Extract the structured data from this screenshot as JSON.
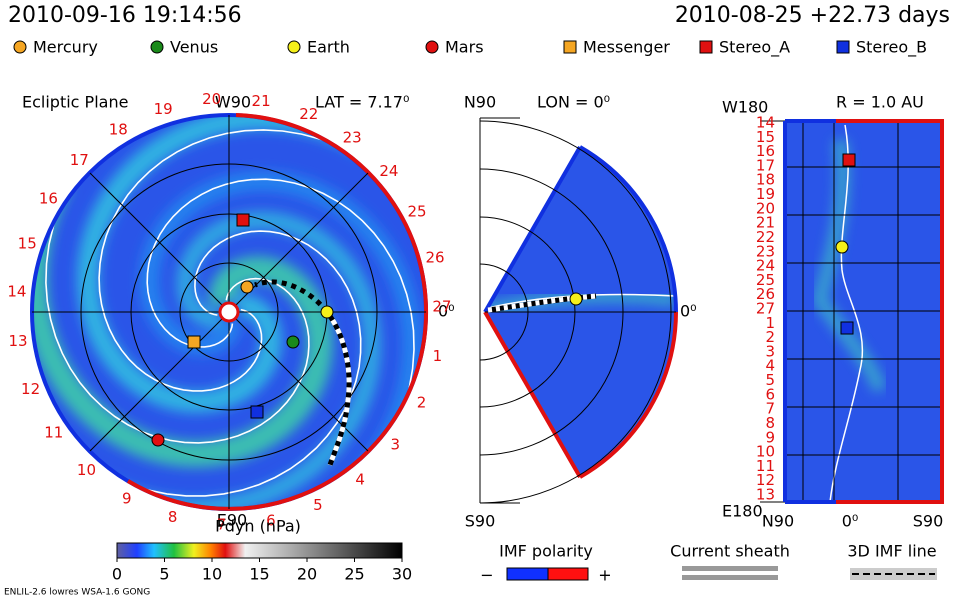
{
  "header": {
    "timestamp": "2010-09-16 19:14:56",
    "run": "2010-08-25 +22.73 days"
  },
  "legend": {
    "items": [
      {
        "label": "Mercury",
        "shape": "circle",
        "color": "#f5a623"
      },
      {
        "label": "Venus",
        "shape": "circle",
        "color": "#1a8a1a"
      },
      {
        "label": "Earth",
        "shape": "circle",
        "color": "#f5f01a"
      },
      {
        "label": "Mars",
        "shape": "circle",
        "color": "#e01010"
      },
      {
        "label": "Messenger",
        "shape": "square",
        "color": "#f5a623"
      },
      {
        "label": "Stereo_A",
        "shape": "square",
        "color": "#e01010"
      },
      {
        "label": "Stereo_B",
        "shape": "square",
        "color": "#1030e0"
      }
    ]
  },
  "ecliptic": {
    "title": "Ecliptic Plane",
    "top": "W90",
    "bottom": "E90",
    "right": "0⁰",
    "lat": "LAT = 7.17⁰",
    "day_labels": [
      "19",
      "20",
      "21",
      "22",
      "23",
      "24",
      "25",
      "26",
      "27",
      "1",
      "2",
      "3",
      "4",
      "5",
      "6",
      "7",
      "8",
      "9",
      "10",
      "11",
      "12",
      "13",
      "14",
      "15",
      "16",
      "17",
      "18"
    ]
  },
  "meridional": {
    "top": "N90",
    "bottom": "S90",
    "right": "0⁰",
    "lon": "LON = 0⁰"
  },
  "radial": {
    "title": "R = 1.0 AU",
    "top": "W180",
    "bottom": "E180",
    "left": "N90",
    "center": "0⁰",
    "right": "S90",
    "day_labels": [
      "14",
      "15",
      "16",
      "17",
      "18",
      "19",
      "20",
      "21",
      "22",
      "23",
      "24",
      "25",
      "26",
      "27",
      "1",
      "2",
      "3",
      "4",
      "5",
      "6",
      "7",
      "8",
      "9",
      "10",
      "11",
      "12",
      "13"
    ]
  },
  "colorbar": {
    "title": "Pdyn (nPa)",
    "range": [
      0,
      30
    ],
    "ticks": [
      0,
      5,
      10,
      15,
      20,
      25,
      30
    ]
  },
  "keys": {
    "imf_polarity": "IMF polarity",
    "minus": "−",
    "plus": "+",
    "current_sheath": "Current sheath",
    "imf_line": "3D IMF line"
  },
  "footer": "ENLIL-2.6 lowres WSA-1.6 GONG"
}
